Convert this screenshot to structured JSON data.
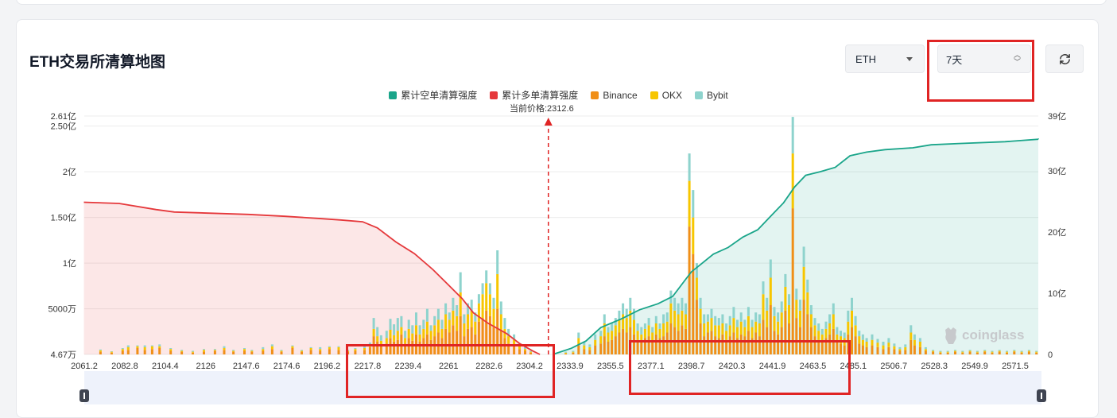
{
  "page": {
    "title": "ETH交易所清算地图",
    "coin_select": "ETH",
    "period_select": "7天",
    "refresh_icon": "refresh-icon",
    "watermark": "coinglass"
  },
  "colors": {
    "short_cum": "#1aa58a",
    "long_cum": "#e5383b",
    "binance": "#f08f18",
    "okx": "#f7c600",
    "bybit": "#8ed3cd",
    "highlight": "#e02424"
  },
  "chart_data": {
    "type": "bar",
    "legend": [
      "累计空单清算强度",
      "累计多单清算强度",
      "Binance",
      "OKX",
      "Bybit"
    ],
    "current_price_label": "当前价格:2312.6",
    "current_price": 2312.6,
    "x_range": [
      2061.2,
      2578
    ],
    "x_ticks": [
      "2061.2",
      "2082.8",
      "2104.4",
      "2126",
      "2147.6",
      "2174.6",
      "2196.2",
      "2217.8",
      "2239.4",
      "2261",
      "2282.6",
      "2304.2",
      "2333.9",
      "2355.5",
      "2377.1",
      "2398.7",
      "2420.3",
      "2441.9",
      "2463.5",
      "2485.1",
      "2506.7",
      "2528.3",
      "2549.9",
      "2571.5"
    ],
    "y_left_ticks": [
      "4.67万",
      "5000万",
      "1亿",
      "1.50亿",
      "2亿",
      "2.50亿",
      "2.61亿"
    ],
    "y_left_values": [
      46700,
      50000000,
      100000000,
      150000000,
      200000000,
      250000000,
      261000000
    ],
    "y_left_range": [
      46700,
      261000000
    ],
    "y_right_ticks": [
      "0",
      "10亿",
      "20亿",
      "30亿",
      "39亿"
    ],
    "y_right_values": [
      0,
      1000000000,
      2000000000,
      3000000000,
      3900000000
    ],
    "y_right_range": [
      0,
      3900000000
    ],
    "bar_series_names": [
      "Binance",
      "OKX",
      "Bybit"
    ],
    "bars": [
      {
        "x": 2070,
        "b": 3,
        "o": 1.5,
        "y": 1
      },
      {
        "x": 2076,
        "b": 2,
        "o": 1,
        "y": 0.5
      },
      {
        "x": 2082,
        "b": 4,
        "o": 2,
        "y": 1
      },
      {
        "x": 2085,
        "b": 5,
        "o": 3,
        "y": 2
      },
      {
        "x": 2090,
        "b": 7,
        "o": 2,
        "y": 1
      },
      {
        "x": 2094,
        "b": 5,
        "o": 3,
        "y": 2
      },
      {
        "x": 2098,
        "b": 6,
        "o": 3,
        "y": 1
      },
      {
        "x": 2102,
        "b": 7,
        "o": 2,
        "y": 2
      },
      {
        "x": 2108,
        "b": 4,
        "o": 2,
        "y": 1
      },
      {
        "x": 2114,
        "b": 3,
        "o": 1,
        "y": 1
      },
      {
        "x": 2120,
        "b": 2,
        "o": 1,
        "y": 1
      },
      {
        "x": 2126,
        "b": 3,
        "o": 2,
        "y": 1
      },
      {
        "x": 2132,
        "b": 4,
        "o": 1,
        "y": 1
      },
      {
        "x": 2137,
        "b": 5,
        "o": 2,
        "y": 2
      },
      {
        "x": 2142,
        "b": 3,
        "o": 1,
        "y": 1
      },
      {
        "x": 2148,
        "b": 4,
        "o": 2,
        "y": 1
      },
      {
        "x": 2152,
        "b": 3,
        "o": 1,
        "y": 1
      },
      {
        "x": 2158,
        "b": 4,
        "o": 2,
        "y": 2
      },
      {
        "x": 2163,
        "b": 6,
        "o": 3,
        "y": 2
      },
      {
        "x": 2168,
        "b": 3,
        "o": 1,
        "y": 1
      },
      {
        "x": 2174,
        "b": 7,
        "o": 2,
        "y": 1
      },
      {
        "x": 2179,
        "b": 3,
        "o": 1,
        "y": 1
      },
      {
        "x": 2184,
        "b": 5,
        "o": 2,
        "y": 1
      },
      {
        "x": 2189,
        "b": 4,
        "o": 2,
        "y": 2
      },
      {
        "x": 2194,
        "b": 6,
        "o": 2,
        "y": 1
      },
      {
        "x": 2199,
        "b": 5,
        "o": 3,
        "y": 1
      },
      {
        "x": 2204,
        "b": 3,
        "o": 1,
        "y": 1
      },
      {
        "x": 2208,
        "b": 4,
        "o": 2,
        "y": 1
      },
      {
        "x": 2213,
        "b": 5,
        "o": 2,
        "y": 2
      },
      {
        "x": 2216,
        "b": 8,
        "o": 3,
        "y": 2
      },
      {
        "x": 2218,
        "b": 20,
        "o": 8,
        "y": 12
      },
      {
        "x": 2220,
        "b": 14,
        "o": 6,
        "y": 10
      },
      {
        "x": 2222,
        "b": 10,
        "o": 5,
        "y": 6
      },
      {
        "x": 2225,
        "b": 12,
        "o": 6,
        "y": 8
      },
      {
        "x": 2227,
        "b": 18,
        "o": 9,
        "y": 12
      },
      {
        "x": 2229,
        "b": 14,
        "o": 7,
        "y": 12
      },
      {
        "x": 2231,
        "b": 16,
        "o": 10,
        "y": 14
      },
      {
        "x": 2233,
        "b": 22,
        "o": 8,
        "y": 12
      },
      {
        "x": 2235,
        "b": 12,
        "o": 6,
        "y": 8
      },
      {
        "x": 2237,
        "b": 18,
        "o": 10,
        "y": 10
      },
      {
        "x": 2239,
        "b": 15,
        "o": 8,
        "y": 9
      },
      {
        "x": 2241,
        "b": 22,
        "o": 10,
        "y": 14
      },
      {
        "x": 2243,
        "b": 14,
        "o": 8,
        "y": 10
      },
      {
        "x": 2245,
        "b": 18,
        "o": 10,
        "y": 10
      },
      {
        "x": 2247,
        "b": 22,
        "o": 14,
        "y": 14
      },
      {
        "x": 2249,
        "b": 16,
        "o": 10,
        "y": 6
      },
      {
        "x": 2251,
        "b": 20,
        "o": 12,
        "y": 10
      },
      {
        "x": 2253,
        "b": 24,
        "o": 14,
        "y": 12
      },
      {
        "x": 2255,
        "b": 18,
        "o": 10,
        "y": 10
      },
      {
        "x": 2257,
        "b": 28,
        "o": 16,
        "y": 12
      },
      {
        "x": 2259,
        "b": 24,
        "o": 14,
        "y": 8
      },
      {
        "x": 2261,
        "b": 32,
        "o": 16,
        "y": 14
      },
      {
        "x": 2263,
        "b": 26,
        "o": 16,
        "y": 12
      },
      {
        "x": 2265,
        "b": 42,
        "o": 26,
        "y": 22
      },
      {
        "x": 2267,
        "b": 20,
        "o": 14,
        "y": 10
      },
      {
        "x": 2269,
        "b": 28,
        "o": 16,
        "y": 12
      },
      {
        "x": 2271,
        "b": 30,
        "o": 18,
        "y": 12
      },
      {
        "x": 2273,
        "b": 22,
        "o": 14,
        "y": 10
      },
      {
        "x": 2275,
        "b": 36,
        "o": 20,
        "y": 10
      },
      {
        "x": 2277,
        "b": 40,
        "o": 26,
        "y": 12
      },
      {
        "x": 2279,
        "b": 48,
        "o": 30,
        "y": 14
      },
      {
        "x": 2281,
        "b": 42,
        "o": 24,
        "y": 12
      },
      {
        "x": 2283,
        "b": 30,
        "o": 20,
        "y": 12
      },
      {
        "x": 2285,
        "b": 50,
        "o": 38,
        "y": 26
      },
      {
        "x": 2287,
        "b": 26,
        "o": 18,
        "y": 14
      },
      {
        "x": 2289,
        "b": 18,
        "o": 10,
        "y": 12
      },
      {
        "x": 2291,
        "b": 12,
        "o": 8,
        "y": 8
      },
      {
        "x": 2294,
        "b": 10,
        "o": 6,
        "y": 6
      },
      {
        "x": 2297,
        "b": 6,
        "o": 3,
        "y": 3
      },
      {
        "x": 2300,
        "b": 4,
        "o": 2,
        "y": 2
      },
      {
        "x": 2303,
        "b": 2,
        "o": 1,
        "y": 1
      },
      {
        "x": 2322,
        "b": 1,
        "o": 1,
        "y": 1
      },
      {
        "x": 2326,
        "b": 2,
        "o": 1,
        "y": 1
      },
      {
        "x": 2329,
        "b": 10,
        "o": 8,
        "y": 6
      },
      {
        "x": 2332,
        "b": 6,
        "o": 4,
        "y": 4
      },
      {
        "x": 2335,
        "b": 5,
        "o": 3,
        "y": 3
      },
      {
        "x": 2338,
        "b": 10,
        "o": 6,
        "y": 6
      },
      {
        "x": 2341,
        "b": 12,
        "o": 8,
        "y": 6
      },
      {
        "x": 2343,
        "b": 20,
        "o": 14,
        "y": 10
      },
      {
        "x": 2345,
        "b": 14,
        "o": 10,
        "y": 6
      },
      {
        "x": 2347,
        "b": 16,
        "o": 10,
        "y": 8
      },
      {
        "x": 2349,
        "b": 20,
        "o": 12,
        "y": 8
      },
      {
        "x": 2351,
        "b": 24,
        "o": 14,
        "y": 10
      },
      {
        "x": 2353,
        "b": 28,
        "o": 16,
        "y": 12
      },
      {
        "x": 2355,
        "b": 24,
        "o": 16,
        "y": 10
      },
      {
        "x": 2357,
        "b": 30,
        "o": 18,
        "y": 14
      },
      {
        "x": 2359,
        "b": 22,
        "o": 16,
        "y": 12
      },
      {
        "x": 2361,
        "b": 16,
        "o": 10,
        "y": 8
      },
      {
        "x": 2363,
        "b": 14,
        "o": 8,
        "y": 8
      },
      {
        "x": 2365,
        "b": 18,
        "o": 10,
        "y": 6
      },
      {
        "x": 2367,
        "b": 20,
        "o": 12,
        "y": 8
      },
      {
        "x": 2369,
        "b": 14,
        "o": 10,
        "y": 6
      },
      {
        "x": 2371,
        "b": 22,
        "o": 12,
        "y": 8
      },
      {
        "x": 2373,
        "b": 18,
        "o": 10,
        "y": 6
      },
      {
        "x": 2375,
        "b": 20,
        "o": 14,
        "y": 10
      },
      {
        "x": 2377,
        "b": 24,
        "o": 12,
        "y": 10
      },
      {
        "x": 2379,
        "b": 34,
        "o": 22,
        "y": 14
      },
      {
        "x": 2381,
        "b": 30,
        "o": 18,
        "y": 14
      },
      {
        "x": 2383,
        "b": 26,
        "o": 18,
        "y": 12
      },
      {
        "x": 2385,
        "b": 32,
        "o": 16,
        "y": 14
      },
      {
        "x": 2387,
        "b": 28,
        "o": 16,
        "y": 12
      },
      {
        "x": 2389,
        "b": 140,
        "o": 50,
        "y": 30
      },
      {
        "x": 2391,
        "b": 110,
        "o": 40,
        "y": 30
      },
      {
        "x": 2393,
        "b": 60,
        "o": 24,
        "y": 16
      },
      {
        "x": 2395,
        "b": 34,
        "o": 16,
        "y": 12
      },
      {
        "x": 2397,
        "b": 20,
        "o": 14,
        "y": 10
      },
      {
        "x": 2399,
        "b": 24,
        "o": 12,
        "y": 8
      },
      {
        "x": 2401,
        "b": 26,
        "o": 14,
        "y": 10
      },
      {
        "x": 2403,
        "b": 20,
        "o": 12,
        "y": 10
      },
      {
        "x": 2405,
        "b": 18,
        "o": 14,
        "y": 8
      },
      {
        "x": 2407,
        "b": 22,
        "o": 12,
        "y": 10
      },
      {
        "x": 2409,
        "b": 16,
        "o": 10,
        "y": 8
      },
      {
        "x": 2411,
        "b": 20,
        "o": 12,
        "y": 10
      },
      {
        "x": 2413,
        "b": 24,
        "o": 16,
        "y": 12
      },
      {
        "x": 2415,
        "b": 18,
        "o": 12,
        "y": 8
      },
      {
        "x": 2417,
        "b": 22,
        "o": 14,
        "y": 10
      },
      {
        "x": 2419,
        "b": 20,
        "o": 10,
        "y": 8
      },
      {
        "x": 2421,
        "b": 26,
        "o": 16,
        "y": 10
      },
      {
        "x": 2423,
        "b": 18,
        "o": 12,
        "y": 8
      },
      {
        "x": 2425,
        "b": 24,
        "o": 12,
        "y": 10
      },
      {
        "x": 2427,
        "b": 20,
        "o": 14,
        "y": 10
      },
      {
        "x": 2429,
        "b": 38,
        "o": 28,
        "y": 14
      },
      {
        "x": 2431,
        "b": 30,
        "o": 18,
        "y": 14
      },
      {
        "x": 2433,
        "b": 54,
        "o": 30,
        "y": 20
      },
      {
        "x": 2435,
        "b": 26,
        "o": 16,
        "y": 10
      },
      {
        "x": 2437,
        "b": 22,
        "o": 14,
        "y": 10
      },
      {
        "x": 2439,
        "b": 30,
        "o": 16,
        "y": 12
      },
      {
        "x": 2441,
        "b": 48,
        "o": 26,
        "y": 14
      },
      {
        "x": 2443,
        "b": 34,
        "o": 20,
        "y": 12
      },
      {
        "x": 2445,
        "b": 160,
        "o": 60,
        "y": 40
      },
      {
        "x": 2447,
        "b": 40,
        "o": 20,
        "y": 12
      },
      {
        "x": 2449,
        "b": 30,
        "o": 18,
        "y": 12
      },
      {
        "x": 2451,
        "b": 60,
        "o": 36,
        "y": 22
      },
      {
        "x": 2453,
        "b": 44,
        "o": 24,
        "y": 14
      },
      {
        "x": 2455,
        "b": 30,
        "o": 14,
        "y": 10
      },
      {
        "x": 2457,
        "b": 20,
        "o": 12,
        "y": 8
      },
      {
        "x": 2459,
        "b": 16,
        "o": 10,
        "y": 8
      },
      {
        "x": 2461,
        "b": 14,
        "o": 8,
        "y": 6
      },
      {
        "x": 2463,
        "b": 18,
        "o": 10,
        "y": 8
      },
      {
        "x": 2465,
        "b": 22,
        "o": 12,
        "y": 10
      },
      {
        "x": 2467,
        "b": 28,
        "o": 16,
        "y": 12
      },
      {
        "x": 2469,
        "b": 14,
        "o": 8,
        "y": 8
      },
      {
        "x": 2471,
        "b": 12,
        "o": 8,
        "y": 6
      },
      {
        "x": 2473,
        "b": 10,
        "o": 8,
        "y": 6
      },
      {
        "x": 2475,
        "b": 22,
        "o": 14,
        "y": 12
      },
      {
        "x": 2477,
        "b": 30,
        "o": 18,
        "y": 14
      },
      {
        "x": 2479,
        "b": 20,
        "o": 12,
        "y": 10
      },
      {
        "x": 2481,
        "b": 12,
        "o": 8,
        "y": 6
      },
      {
        "x": 2483,
        "b": 10,
        "o": 6,
        "y": 6
      },
      {
        "x": 2485,
        "b": 8,
        "o": 6,
        "y": 4
      },
      {
        "x": 2488,
        "b": 10,
        "o": 6,
        "y": 6
      },
      {
        "x": 2491,
        "b": 8,
        "o": 5,
        "y": 4
      },
      {
        "x": 2494,
        "b": 6,
        "o": 4,
        "y": 4
      },
      {
        "x": 2497,
        "b": 8,
        "o": 5,
        "y": 5
      },
      {
        "x": 2500,
        "b": 6,
        "o": 3,
        "y": 3
      },
      {
        "x": 2503,
        "b": 4,
        "o": 2,
        "y": 2
      },
      {
        "x": 2506,
        "b": 5,
        "o": 3,
        "y": 3
      },
      {
        "x": 2509,
        "b": 16,
        "o": 8,
        "y": 8
      },
      {
        "x": 2511,
        "b": 10,
        "o": 6,
        "y": 6
      },
      {
        "x": 2514,
        "b": 8,
        "o": 6,
        "y": 4
      },
      {
        "x": 2517,
        "b": 4,
        "o": 2,
        "y": 2
      },
      {
        "x": 2521,
        "b": 3,
        "o": 1,
        "y": 1
      },
      {
        "x": 2525,
        "b": 2,
        "o": 1,
        "y": 1
      },
      {
        "x": 2529,
        "b": 2,
        "o": 1,
        "y": 1
      },
      {
        "x": 2533,
        "b": 3,
        "o": 1,
        "y": 1
      },
      {
        "x": 2537,
        "b": 2,
        "o": 1,
        "y": 1
      },
      {
        "x": 2541,
        "b": 3,
        "o": 1,
        "y": 1
      },
      {
        "x": 2545,
        "b": 2,
        "o": 1,
        "y": 1
      },
      {
        "x": 2549,
        "b": 3,
        "o": 1,
        "y": 1
      },
      {
        "x": 2553,
        "b": 2,
        "o": 1,
        "y": 1
      },
      {
        "x": 2557,
        "b": 3,
        "o": 1,
        "y": 1
      },
      {
        "x": 2561,
        "b": 2,
        "o": 1,
        "y": 1
      },
      {
        "x": 2565,
        "b": 3,
        "o": 1,
        "y": 1
      },
      {
        "x": 2569,
        "b": 2,
        "o": 1,
        "y": 1
      },
      {
        "x": 2573,
        "b": 3,
        "o": 1,
        "y": 1
      },
      {
        "x": 2577,
        "b": 2,
        "o": 1,
        "y": 1
      }
    ],
    "bar_values_unit": "百万",
    "long_cum": [
      [
        2061,
        2490
      ],
      [
        2080,
        2470
      ],
      [
        2100,
        2370
      ],
      [
        2110,
        2330
      ],
      [
        2130,
        2310
      ],
      [
        2150,
        2290
      ],
      [
        2170,
        2260
      ],
      [
        2190,
        2220
      ],
      [
        2200,
        2200
      ],
      [
        2212,
        2170
      ],
      [
        2220,
        2070
      ],
      [
        2230,
        1840
      ],
      [
        2240,
        1650
      ],
      [
        2250,
        1390
      ],
      [
        2258,
        1150
      ],
      [
        2266,
        910
      ],
      [
        2272,
        680
      ],
      [
        2280,
        510
      ],
      [
        2290,
        340
      ],
      [
        2297,
        180
      ],
      [
        2304,
        60
      ],
      [
        2308,
        0
      ]
    ],
    "short_cum": [
      [
        2315,
        0
      ],
      [
        2325,
        100
      ],
      [
        2333,
        220
      ],
      [
        2341,
        440
      ],
      [
        2352,
        580
      ],
      [
        2362,
        730
      ],
      [
        2372,
        830
      ],
      [
        2380,
        950
      ],
      [
        2385,
        1150
      ],
      [
        2390,
        1350
      ],
      [
        2395,
        1470
      ],
      [
        2402,
        1640
      ],
      [
        2410,
        1750
      ],
      [
        2418,
        1920
      ],
      [
        2426,
        2040
      ],
      [
        2434,
        2290
      ],
      [
        2440,
        2480
      ],
      [
        2446,
        2740
      ],
      [
        2452,
        2930
      ],
      [
        2460,
        2990
      ],
      [
        2468,
        3060
      ],
      [
        2476,
        3250
      ],
      [
        2485,
        3310
      ],
      [
        2495,
        3350
      ],
      [
        2510,
        3380
      ],
      [
        2520,
        3430
      ],
      [
        2535,
        3450
      ],
      [
        2560,
        3480
      ],
      [
        2578,
        3520
      ]
    ],
    "cum_unit": "百万"
  }
}
